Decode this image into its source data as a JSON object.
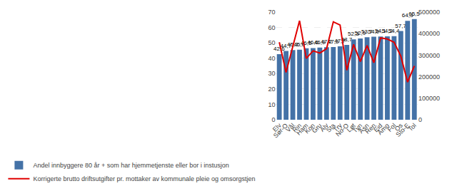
{
  "chart_data": {
    "type": "bar",
    "categories": [
      "Elv",
      "Sør-O",
      "Vål",
      "Rin",
      "Ham",
      "Kon",
      "Gru",
      "Alv",
      "Sta",
      "Try",
      "No-O",
      "Løt",
      "Tyn",
      "Åsn",
      "Ren",
      "Eid",
      "Åmo",
      "Fol",
      "Os",
      "Sto-E",
      "Tol"
    ],
    "series": [
      {
        "name": "Andel innbyggere 80 år + som har hjemmetjenste eller bor i instusjon",
        "type": "bar",
        "color": "#4472a7",
        "values": [
          42.6,
          44.7,
          45.3,
          45.6,
          46.5,
          46.6,
          46.9,
          47.2,
          47.3,
          47.7,
          48.7,
          52.3,
          52.9,
          53.7,
          54.0,
          54.1,
          54.2,
          54.4,
          57.7,
          64.3,
          65.5
        ],
        "value_labels": [
          "42,6",
          "44,7",
          "45,3",
          "45,6",
          "46,5",
          "46,6",
          "46,9",
          "47,2",
          "47,3",
          "47,7",
          "48,7",
          "52,3",
          "52,9",
          "53,7",
          "54,0",
          "54,1",
          "54,2",
          "54,4",
          "57,7",
          "64,3",
          "65,5"
        ],
        "data_labels": true
      },
      {
        "name": "Korrigerte brutto driftsutgifter pr. mottaker av kommunale pleie og omsorgstjen",
        "type": "line",
        "axis": "y2",
        "color": "#e00000",
        "values": [
          360000,
          220000,
          340000,
          460000,
          285000,
          320000,
          310000,
          330000,
          455000,
          440000,
          230000,
          350000,
          270000,
          345000,
          265000,
          380000,
          375000,
          360000,
          295000,
          175000,
          250000
        ]
      }
    ],
    "ylim": [
      0,
      70
    ],
    "yticks": [
      0,
      10,
      20,
      30,
      40,
      50,
      60,
      70
    ],
    "y2lim": [
      0,
      500000
    ],
    "y2ticks": [
      0,
      100000,
      200000,
      300000,
      400000,
      500000
    ],
    "grid": true,
    "legend": "lower left"
  }
}
